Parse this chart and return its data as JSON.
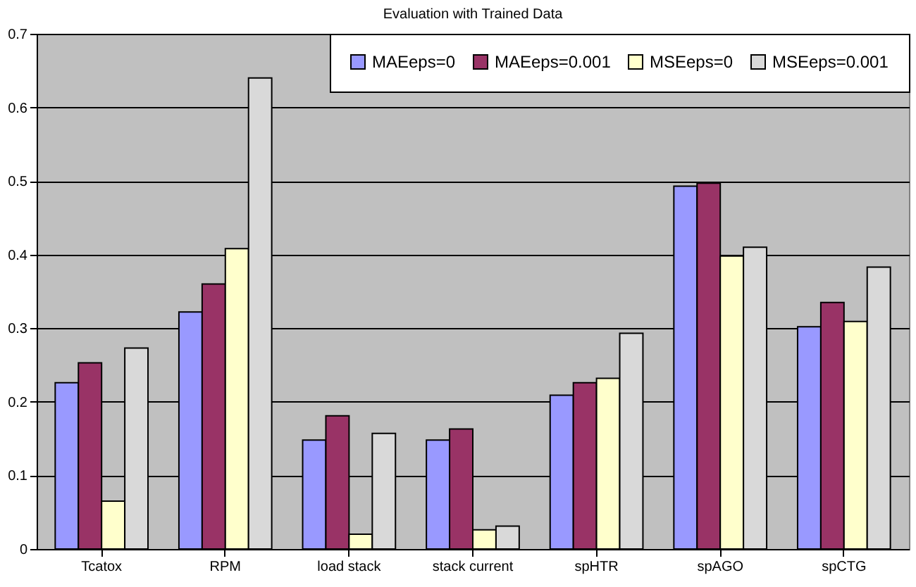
{
  "chart_data": {
    "type": "bar",
    "title": "Evaluation with Trained Data",
    "categories": [
      "Tcatox",
      "RPM",
      "load stack",
      "stack current",
      "spHTR",
      "spAGO",
      "spCTG"
    ],
    "series": [
      {
        "name": "MAEeps=0",
        "color": "#9999ff",
        "values": [
          0.226,
          0.322,
          0.148,
          0.148,
          0.209,
          0.493,
          0.302
        ]
      },
      {
        "name": "MAEeps=0.001",
        "color": "#993366",
        "values": [
          0.253,
          0.36,
          0.181,
          0.163,
          0.226,
          0.497,
          0.335
        ]
      },
      {
        "name": "MSEeps=0",
        "color": "#ffffcc",
        "values": [
          0.065,
          0.408,
          0.02,
          0.026,
          0.232,
          0.398,
          0.309
        ]
      },
      {
        "name": "MSEeps=0.001",
        "color": "#d9d9d9",
        "values": [
          0.273,
          0.64,
          0.157,
          0.031,
          0.293,
          0.41,
          0.383
        ]
      }
    ],
    "ylim": [
      0,
      0.7
    ],
    "yticks": [
      0,
      0.1,
      0.2,
      0.3,
      0.4,
      0.5,
      0.6,
      0.7
    ],
    "grid": "y",
    "legend": "top right"
  }
}
